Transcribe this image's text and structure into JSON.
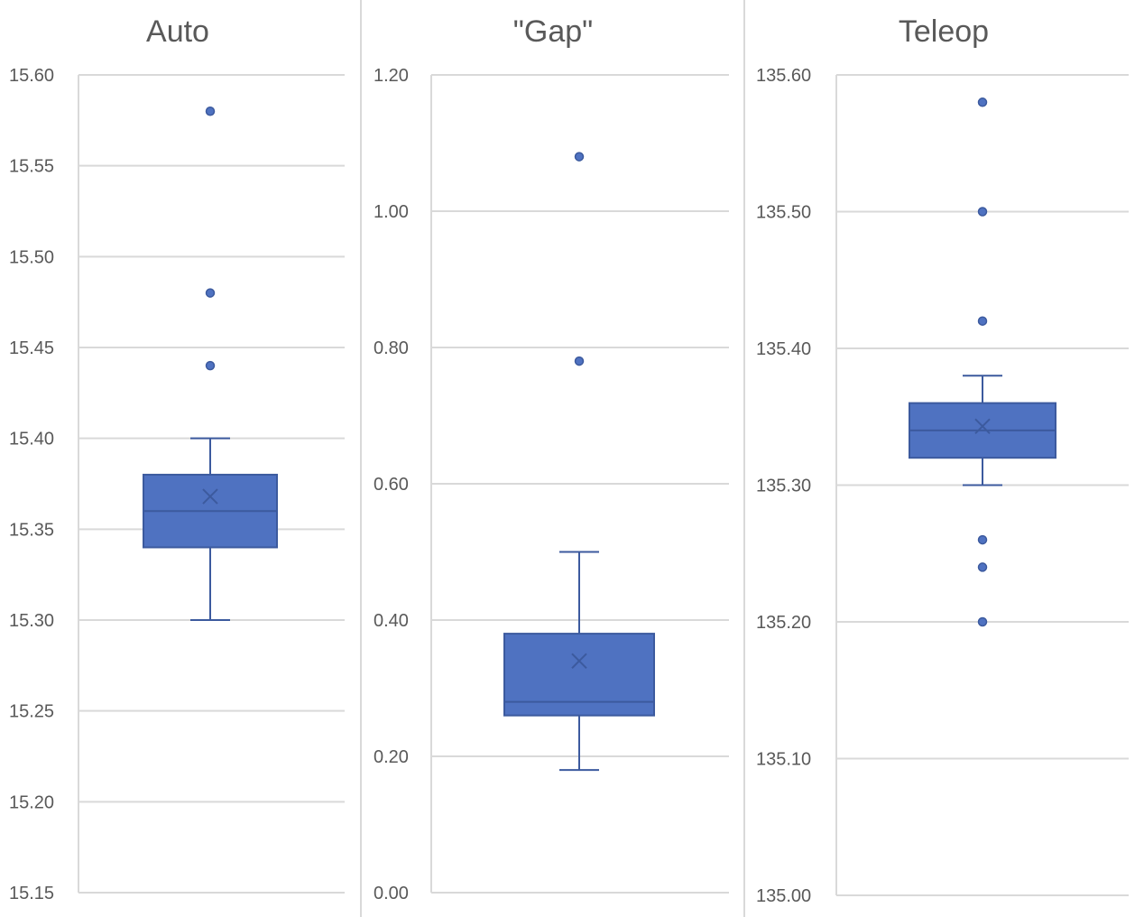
{
  "chart_data": [
    {
      "type": "box",
      "title": "Auto",
      "ylim": [
        15.15,
        15.6
      ],
      "ticks": [
        "15.60",
        "15.55",
        "15.50",
        "15.45",
        "15.40",
        "15.35",
        "15.30",
        "15.25",
        "15.20",
        "15.15"
      ],
      "tick_values": [
        15.6,
        15.55,
        15.5,
        15.45,
        15.4,
        15.35,
        15.3,
        15.25,
        15.2,
        15.15
      ],
      "box": {
        "whisker_low": 15.3,
        "q1": 15.34,
        "median": 15.36,
        "q3": 15.38,
        "whisker_high": 15.4,
        "mean": 15.368
      },
      "outliers": [
        15.58,
        15.48,
        15.44
      ],
      "grid": true
    },
    {
      "type": "box",
      "title": "\"Gap\"",
      "ylim": [
        0.0,
        1.2
      ],
      "ticks": [
        "1.20",
        "1.00",
        "0.80",
        "0.60",
        "0.40",
        "0.20",
        "0.00"
      ],
      "tick_values": [
        1.2,
        1.0,
        0.8,
        0.6,
        0.4,
        0.2,
        0.0
      ],
      "box": {
        "whisker_low": 0.18,
        "q1": 0.26,
        "median": 0.28,
        "q3": 0.38,
        "whisker_high": 0.5,
        "mean": 0.34
      },
      "outliers": [
        1.08,
        0.78
      ],
      "grid": true
    },
    {
      "type": "box",
      "title": "Teleop",
      "ylim": [
        135.0,
        135.6
      ],
      "ticks": [
        "135.60",
        "135.50",
        "135.40",
        "135.30",
        "135.20",
        "135.10",
        "135.00"
      ],
      "tick_values": [
        135.6,
        135.5,
        135.4,
        135.3,
        135.2,
        135.1,
        135.0
      ],
      "box": {
        "whisker_low": 135.3,
        "q1": 135.32,
        "median": 135.34,
        "q3": 135.36,
        "whisker_high": 135.38,
        "mean": 135.343
      },
      "outliers": [
        135.58,
        135.5,
        135.42,
        135.26,
        135.24,
        135.2
      ],
      "grid": true
    }
  ],
  "colors": {
    "box_fill": "#4F72C1",
    "box_stroke": "#3C5A9E",
    "grid": "#D9D9D9",
    "text": "#595959"
  }
}
